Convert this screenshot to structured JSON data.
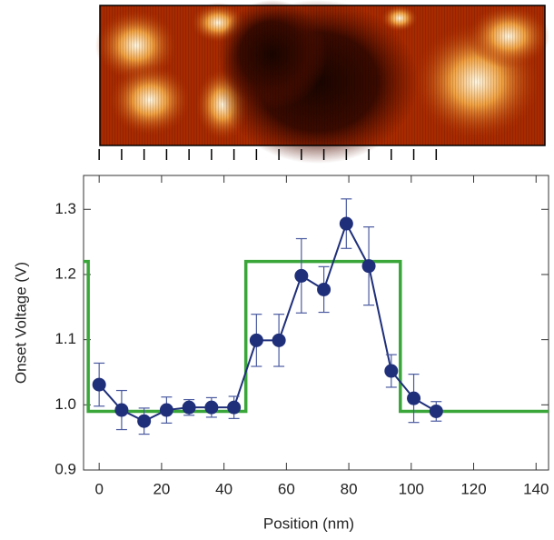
{
  "chart_data": {
    "type": "line",
    "xlabel": "Position (nm)",
    "ylabel": "Onset Voltage (V)",
    "xlim": [
      -5,
      144
    ],
    "ylim": [
      0.9,
      1.352
    ],
    "xticks": [
      0,
      20,
      40,
      60,
      80,
      100,
      120,
      140
    ],
    "yticks": [
      0.9,
      {
        "value": 1,
        "label": "1.0"
      },
      1.1,
      1.2,
      1.3
    ],
    "series": [
      {
        "kind": "step",
        "color": "#3aa63a",
        "x": [
          -5,
          -3.5,
          -3.5,
          47,
          47,
          96.5,
          96.5,
          144
        ],
        "values": [
          1.22,
          1.22,
          0.99,
          0.99,
          1.22,
          1.22,
          0.99,
          0.99
        ]
      },
      {
        "kind": "points",
        "color": "#1f2f7a",
        "x": [
          0,
          7.2,
          14.4,
          21.6,
          28.8,
          36,
          43.2,
          50.4,
          57.6,
          64.8,
          72,
          79.2,
          86.4,
          93.6,
          100.8,
          108
        ],
        "values": [
          1.031,
          0.992,
          0.975,
          0.992,
          0.996,
          0.996,
          0.996,
          1.099,
          1.099,
          1.198,
          1.177,
          1.278,
          1.213,
          1.052,
          1.01,
          0.99
        ],
        "errors": [
          0.033,
          0.03,
          0.02,
          0.02,
          0.012,
          0.015,
          0.017,
          0.04,
          0.04,
          0.057,
          0.035,
          0.038,
          0.06,
          0.025,
          0.037,
          0.015
        ]
      }
    ]
  }
}
